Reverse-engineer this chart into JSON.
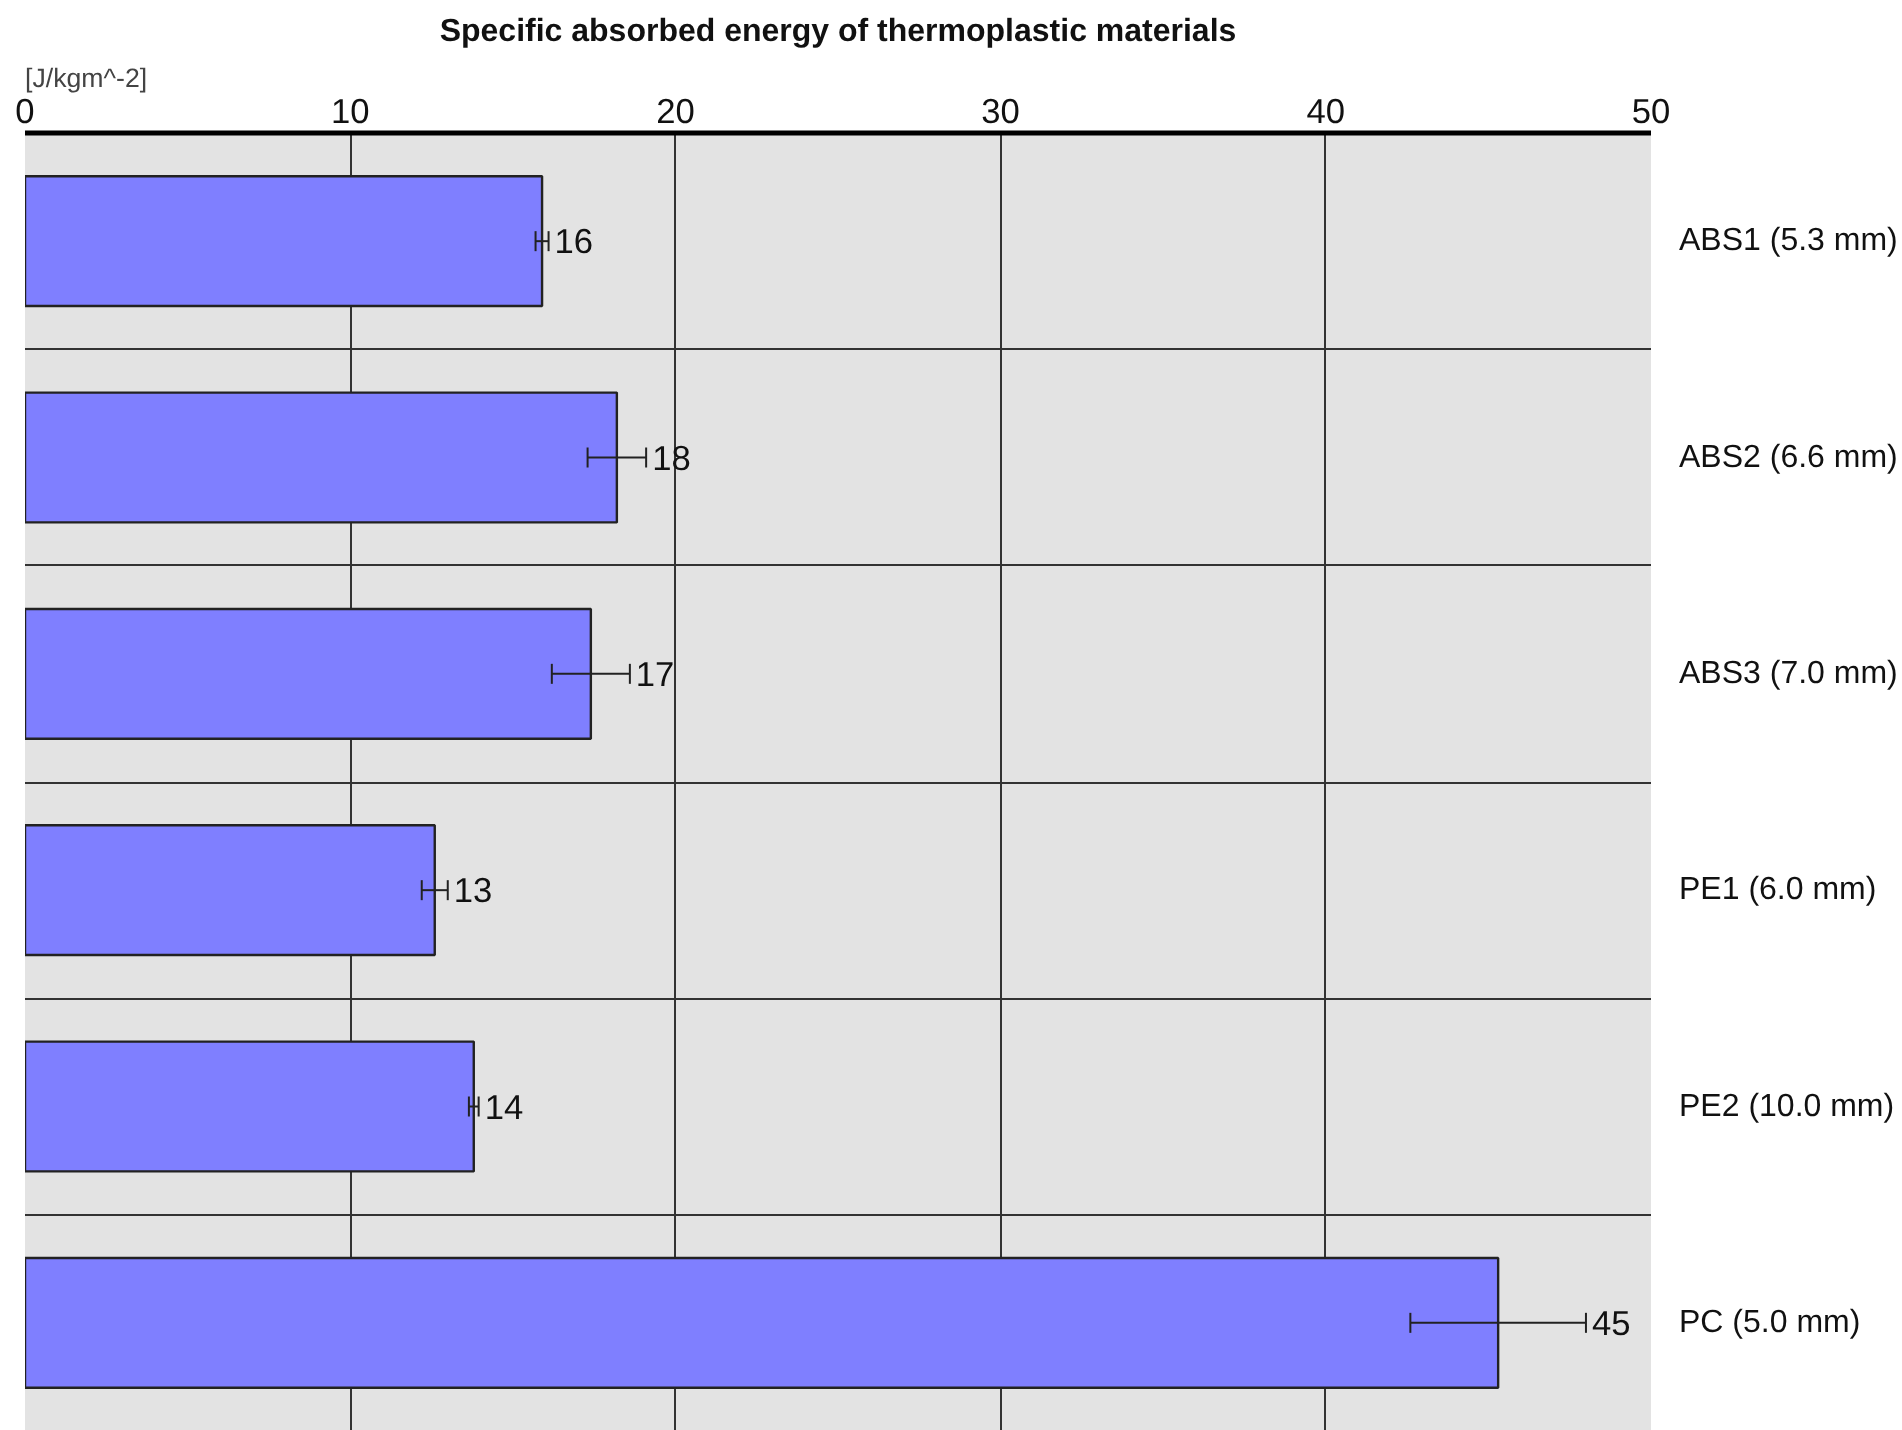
{
  "chart_data": {
    "type": "bar",
    "orientation": "horizontal",
    "title": "Specific absorbed energy of thermoplastic materials",
    "xlabel": "[J/kgm^-2]",
    "categories": [
      "ABS1 (5.3 mm)",
      "ABS2 (6.6 mm)",
      "ABS3 (7.0 mm)",
      "PE1 (6.0 mm)",
      "PE2 (10.0 mm)",
      "PC (5.0 mm)"
    ],
    "values": [
      15.9,
      18.2,
      17.4,
      12.6,
      13.8,
      45.3
    ],
    "errors": [
      0.2,
      0.9,
      1.2,
      0.4,
      0.15,
      2.7
    ],
    "value_labels": [
      "16",
      "18",
      "17",
      "13",
      "14",
      "45"
    ],
    "color": "#7f7fff",
    "xlim": [
      0,
      50
    ],
    "xticks": [
      0,
      10,
      20,
      30,
      40,
      50
    ],
    "grid": true
  }
}
